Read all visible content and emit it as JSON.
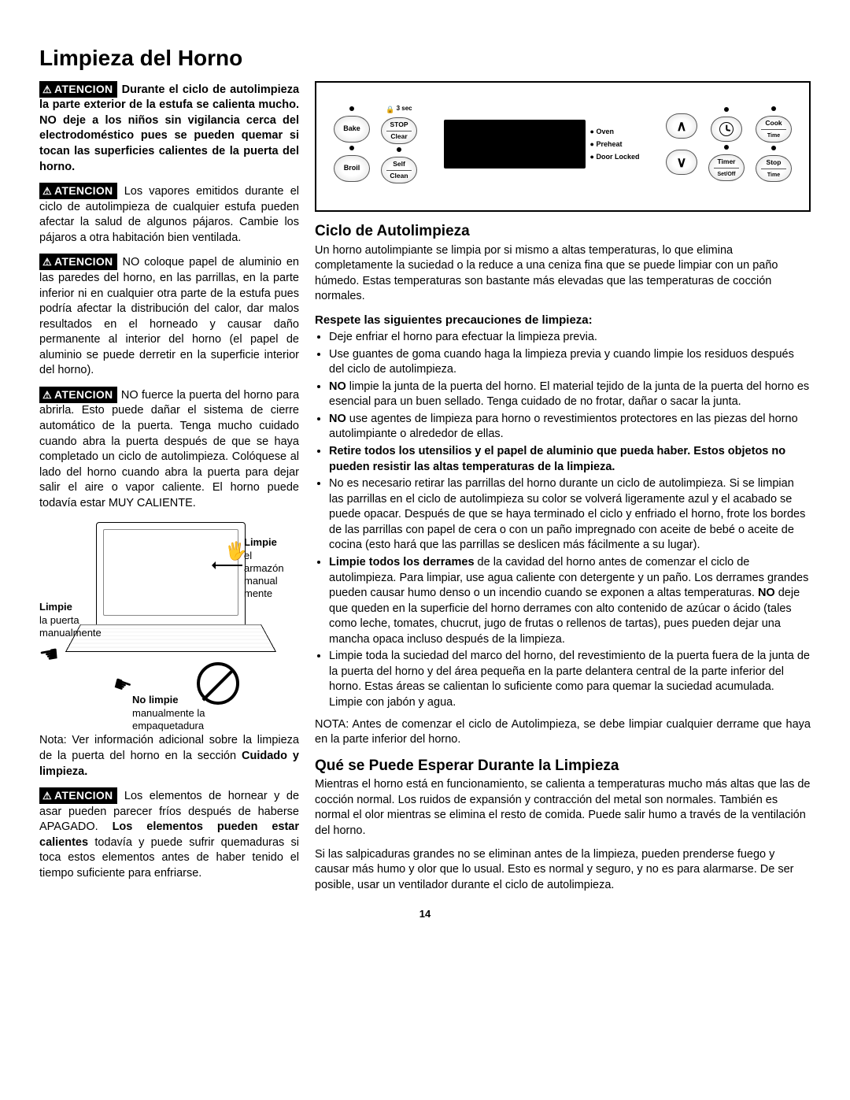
{
  "title": "Limpieza del Horno",
  "warnings": [
    {
      "lead": "Durante el ciclo de autolimpieza la parte exterior de la estufa se calienta mucho. NO deje a los niños sin vigilancia cerca del electrodoméstico pues se pueden quemar si tocan las superficies calientes de la puerta del horno.",
      "bold": true
    },
    {
      "lead": "Los vapores emitidos durante el ciclo de autolimpieza de cualquier estufa pueden afectar la salud de algunos pájaros. Cambie los pájaros a otra habitación bien ventilada."
    },
    {
      "lead": "NO coloque papel de aluminio en las paredes del horno, en las parrillas, en la parte inferior ni en cualquier otra parte de la estufa pues podría afectar la distribución del calor, dar malos resultados en el horneado y causar daño permanente al interior del horno (el papel de aluminio se puede derretir en la superficie interior del horno).",
      "boldLead": "NO"
    },
    {
      "lead": "NO fuerce la puerta del horno para abrirla. Esto puede dañar el sistema de cierre automático de la puerta. Tenga mucho cuidado cuando abra la puerta después de que se haya completado un ciclo de autolimpieza. Colóquese al lado del horno cuando abra la puerta para dejar salir el aire o vapor caliente. El horno puede todavía estar MUY CALIENTE.",
      "boldLead": "NO"
    }
  ],
  "diagram": {
    "label1_bold": "Limpie",
    "label1_rest": "el armazón manual mente",
    "label2_bold": "Limpie",
    "label2_rest": "la puerta manualmente",
    "label3_bold": "No limpie",
    "label3_rest": "manualmente la empaquetadura"
  },
  "note_left": "Nota: Ver información adicional sobre la limpieza de la puerta del horno en la sección ",
  "note_left_bold": "Cuidado y limpieza.",
  "warning5": "Los elementos de hornear y de asar pueden parecer fríos después de haberse APAGADO. ",
  "warning5_bold": "Los elementos pueden estar calientes",
  "warning5_tail": " todavía y puede sufrir quemaduras si toca estos elementos antes de haber tenido el tiempo suficiente para enfriarse.",
  "panel": {
    "bake": "Bake",
    "broil": "Broil",
    "stop": "STOP",
    "clear": "Clear",
    "self": "Self",
    "clean": "Clean",
    "oven": "Oven",
    "preheat": "Preheat",
    "doorlocked": "Door Locked",
    "cook": "Cook",
    "cook_sub": "Time",
    "timer": "Timer",
    "timer_sub": "Set/Off",
    "stopt": "Stop",
    "stopt_sub": "Time",
    "locktime": "3 sec"
  },
  "section1_title": "Ciclo de Autolimpieza",
  "section1_intro": "Un horno autolimpiante se limpia por si mismo a altas temperaturas, lo que elimina completamente la suciedad o la reduce a una ceniza fina que se puede limpiar con un paño húmedo. Estas temperaturas son bastante más elevadas que las temperaturas de cocción normales.",
  "precautions_title": "Respete las siguientes precauciones de limpieza:",
  "bullets": [
    "Deje enfriar el horno para efectuar la limpieza previa.",
    "Use guantes de goma cuando haga la limpieza previa y cuando limpie los residuos después del ciclo de autolimpieza.",
    "<b>NO</b> limpie la junta de la puerta del horno. El material tejido de la junta de la puerta del horno es esencial para un buen sellado. Tenga cuidado de no frotar, dañar o sacar la junta.",
    "<b>NO</b> use agentes de limpieza para horno o revestimientos protectores en las piezas del horno autolimpiante o alrededor de ellas.",
    "<b>Retire todos los utensilios y el papel de aluminio que pueda haber. Estos objetos no pueden resistir las altas temperaturas de la limpieza.</b>",
    "No es necesario retirar las parrillas del horno durante un ciclo de autolimpieza. Si se limpian las parrillas en el ciclo de autolimpieza su color se volverá ligeramente azul y el acabado se puede opacar. Después de que se haya terminado el ciclo y enfriado el horno, frote los bordes de las parrillas con papel de cera o con un paño impregnado con aceite de bebé o aceite de cocina (esto hará que las parrillas se deslicen más fácilmente a su lugar).",
    "<b>Limpie todos los derrames</b> de la cavidad del horno antes de comenzar el ciclo de autolimpieza. Para limpiar, use agua caliente con detergente y un paño. Los derrames grandes pueden causar humo denso o un incendio cuando se exponen a altas temperaturas. <b>NO</b> deje que queden en la superficie del horno derrames con alto contenido de azúcar o ácido (tales como leche, tomates, chucrut, jugo de frutas o rellenos de tartas), pues pueden dejar una mancha opaca incluso después de la limpieza.",
    "Limpie toda la suciedad del marco del horno, del revestimiento de la puerta fuera de la junta de la puerta del horno y del área pequeña en la parte delantera central de la parte inferior del horno. Estas áreas se calientan lo suficiente como para quemar la suciedad acumulada. Limpie con jabón y agua."
  ],
  "nota_right": "NOTA: Antes de comenzar el ciclo de Autolimpieza, se debe limpiar cualquier derrame que haya en la parte inferior del horno.",
  "section2_title": "Qué se Puede Esperar Durante la Limpieza",
  "section2_p1": "Mientras el horno está en funcionamiento, se calienta a temperaturas mucho más altas que las de cocción normal. Los ruidos de expansión y contracción del metal son normales. También es normal el olor mientras se elimina el resto de comida. Puede salir humo a través de la ventilación del horno.",
  "section2_p2": "Si las salpicaduras grandes no se eliminan antes de la limpieza, pueden prenderse fuego y causar más humo y olor que lo usual. Esto es normal y seguro, y no es para alarmarse. De ser posible, usar un ventilador durante el ciclo de autolimpieza.",
  "page": "14",
  "atencion": "ATENCION"
}
